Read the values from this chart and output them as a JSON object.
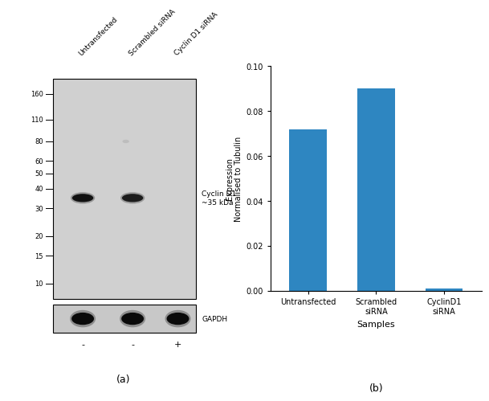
{
  "bar_categories": [
    "Untransfected",
    "Scrambled\nsiRNA",
    "CyclinD1\nsiRNA"
  ],
  "bar_values": [
    0.072,
    0.09,
    0.001
  ],
  "bar_color": "#2E86C1",
  "bar_xlabel": "Samples",
  "bar_ylabel": "Expression\nNormalised to Tubulin",
  "bar_ylim": [
    0.0,
    0.1
  ],
  "bar_yticks": [
    0.0,
    0.02,
    0.04,
    0.06,
    0.08,
    0.1
  ],
  "subfig_label_a": "(a)",
  "subfig_label_b": "(b)",
  "wb_label_right": "Cyclin D1\n~35 kDa",
  "wb_label_gapdh": "GAPDH",
  "wb_markers": [
    160,
    110,
    80,
    60,
    50,
    40,
    30,
    20,
    15,
    10
  ],
  "wb_lane_labels": [
    "-",
    "-",
    "+"
  ],
  "wb_col_labels": [
    "Untransfected",
    "Scrambled siRNA",
    "Cyclin D1 siRNA"
  ],
  "wb_bg_color": "#d0d0d0",
  "wb_band_color": "#111111",
  "wb_gapdh_bg": "#c8c8c8"
}
